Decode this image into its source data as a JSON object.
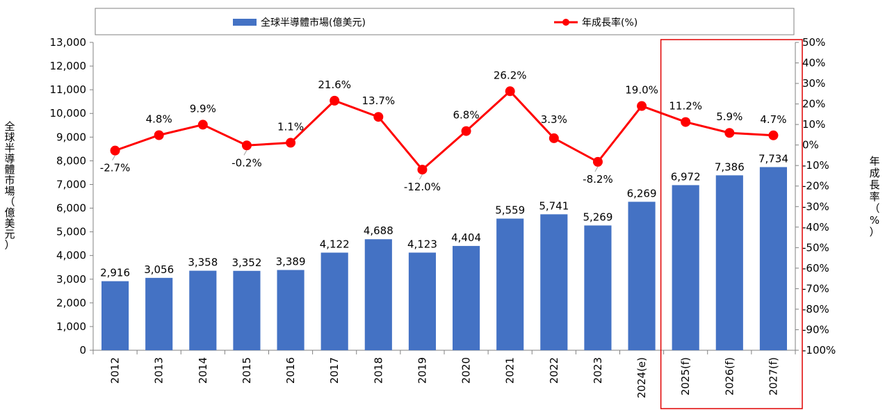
{
  "chart_data": {
    "type": "bar+line",
    "categories": [
      "2012",
      "2013",
      "2014",
      "2015",
      "2016",
      "2017",
      "2018",
      "2019",
      "2020",
      "2021",
      "2022",
      "2023",
      "2024(e)",
      "2025(f)",
      "2026(f)",
      "2027(f)"
    ],
    "series": [
      {
        "name": "全球半導體市場(億美元)",
        "type": "bar",
        "axis": "left",
        "color": "#4472C4",
        "values": [
          2916,
          3056,
          3358,
          3352,
          3389,
          4122,
          4688,
          4123,
          4404,
          5559,
          5741,
          5269,
          6269,
          6972,
          7386,
          7734
        ],
        "labels": [
          "2,916",
          "3,056",
          "3,358",
          "3,352",
          "3,389",
          "4,122",
          "4,688",
          "4,123",
          "4,404",
          "5,559",
          "5,741",
          "5,269",
          "6,269",
          "6,972",
          "7,386",
          "7,734"
        ]
      },
      {
        "name": "年成長率(%)",
        "type": "line",
        "axis": "right",
        "color": "#FF0000",
        "values": [
          -2.7,
          4.8,
          9.9,
          -0.2,
          1.1,
          21.6,
          13.7,
          -12.0,
          6.8,
          26.2,
          3.3,
          -8.2,
          19.0,
          11.2,
          5.9,
          4.7
        ],
        "labels": [
          "-2.7%",
          "4.8%",
          "9.9%",
          "-0.2%",
          "1.1%",
          "21.6%",
          "13.7%",
          "-12.0%",
          "6.8%",
          "26.2%",
          "3.3%",
          "-8.2%",
          "19.0%",
          "11.2%",
          "5.9%",
          "4.7%"
        ]
      }
    ],
    "left_axis": {
      "label": "全球半導體市場（億美元）",
      "range": [
        0,
        13000
      ],
      "ticks": [
        "0",
        "1,000",
        "2,000",
        "3,000",
        "4,000",
        "5,000",
        "6,000",
        "7,000",
        "8,000",
        "9,000",
        "10,000",
        "11,000",
        "12,000",
        "13,000"
      ]
    },
    "right_axis": {
      "label": "年成長率（%）",
      "range": [
        -100,
        50
      ],
      "ticks": [
        "-100%",
        "-90%",
        "-80%",
        "-70%",
        "-60%",
        "-50%",
        "-40%",
        "-30%",
        "-20%",
        "-10%",
        "0%",
        "10%",
        "20%",
        "30%",
        "40%",
        "50%"
      ]
    },
    "legend_position": "top",
    "highlight": {
      "categories": [
        "2025(f)",
        "2026(f)",
        "2027(f)"
      ],
      "color": "#E00000"
    },
    "grid": false
  }
}
